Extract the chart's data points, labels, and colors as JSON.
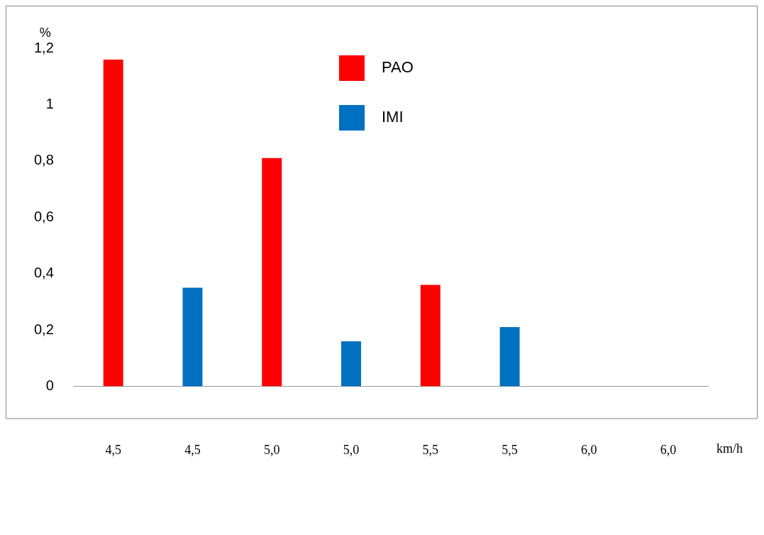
{
  "chart_data": {
    "type": "bar",
    "ylabel": "%",
    "xlabel": "km/h",
    "categories": [
      "4,5",
      "4,5",
      "5,0",
      "5,0",
      "5,5",
      "5,5",
      "6,0",
      "6,0"
    ],
    "series": [
      {
        "name": "PAO",
        "color": "#ff0000",
        "values": [
          1.16,
          null,
          0.81,
          null,
          0.36,
          null,
          0,
          null
        ]
      },
      {
        "name": "IMI",
        "color": "#0070c0",
        "values": [
          null,
          0.35,
          null,
          0.16,
          null,
          0.21,
          null,
          0
        ]
      }
    ],
    "ylim": [
      0,
      1.2
    ],
    "yticks": [
      0,
      {
        "value": 0.2,
        "label": "0,2"
      },
      {
        "value": 0.4,
        "label": "0,4"
      },
      {
        "value": 0.6,
        "label": "0,6"
      },
      {
        "value": 0.8,
        "label": "0,8"
      },
      1,
      {
        "value": 1.2,
        "label": "1,2"
      }
    ],
    "grid": false,
    "legend": "top right"
  }
}
